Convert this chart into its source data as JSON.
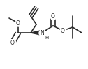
{
  "figsize": [
    1.26,
    0.99
  ],
  "dpi": 100,
  "bond_color": "#2a2a2a",
  "lw": 1.2,
  "fs": 5.5,
  "xlim": [
    0,
    126
  ],
  "ylim": [
    0,
    99
  ]
}
